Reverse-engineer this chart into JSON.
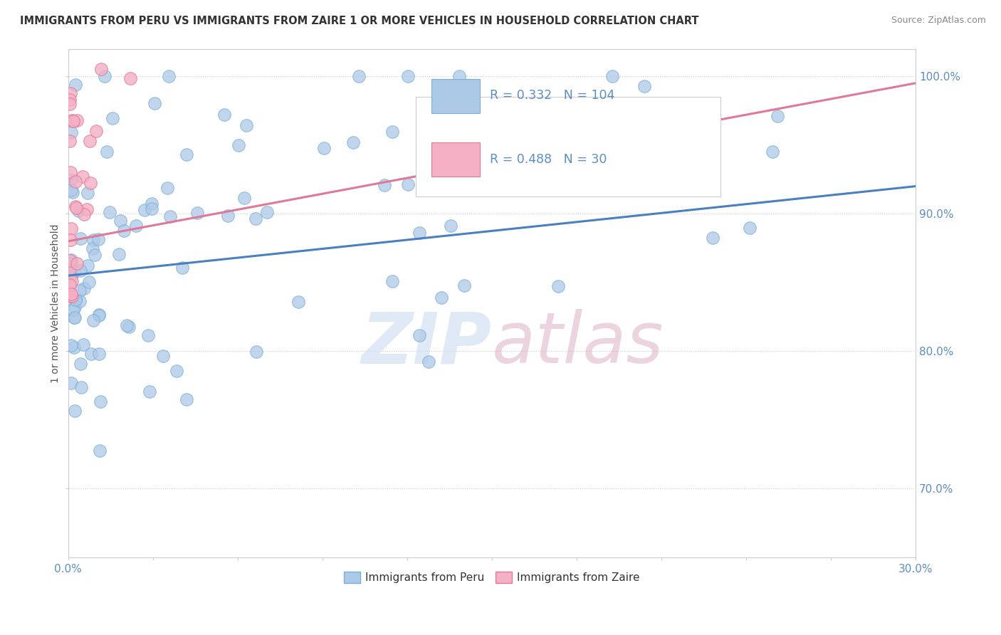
{
  "title": "IMMIGRANTS FROM PERU VS IMMIGRANTS FROM ZAIRE 1 OR MORE VEHICLES IN HOUSEHOLD CORRELATION CHART",
  "source": "Source: ZipAtlas.com",
  "ylabel": "1 or more Vehicles in Household",
  "xlim": [
    0.0,
    0.3
  ],
  "ylim": [
    0.65,
    1.02
  ],
  "ytick_positions": [
    0.7,
    0.8,
    0.9,
    1.0
  ],
  "ytick_labels": [
    "70.0%",
    "80.0%",
    "90.0%",
    "100.0%"
  ],
  "xtick_positions": [
    0.0,
    0.03,
    0.06,
    0.09,
    0.12,
    0.15,
    0.18,
    0.21,
    0.24,
    0.27,
    0.3
  ],
  "xtick_labels_show": [
    "0.0%",
    "",
    "",
    "",
    "",
    "",
    "",
    "",
    "",
    "",
    "30.0%"
  ],
  "peru_R": 0.332,
  "peru_N": 104,
  "zaire_R": 0.488,
  "zaire_N": 30,
  "peru_color": "#adc9e8",
  "peru_edge": "#7aafd4",
  "zaire_color": "#f4b0c4",
  "zaire_edge": "#e07898",
  "peru_line_color": "#4a7fc1",
  "zaire_line_color": "#e07898",
  "watermark_zip": "ZIP",
  "watermark_atlas": "atlas",
  "background_color": "#ffffff",
  "grid_color": "#cccccc",
  "tick_label_color": "#5b8ec4",
  "title_color": "#333333",
  "source_color": "#888888",
  "ylabel_color": "#555555"
}
